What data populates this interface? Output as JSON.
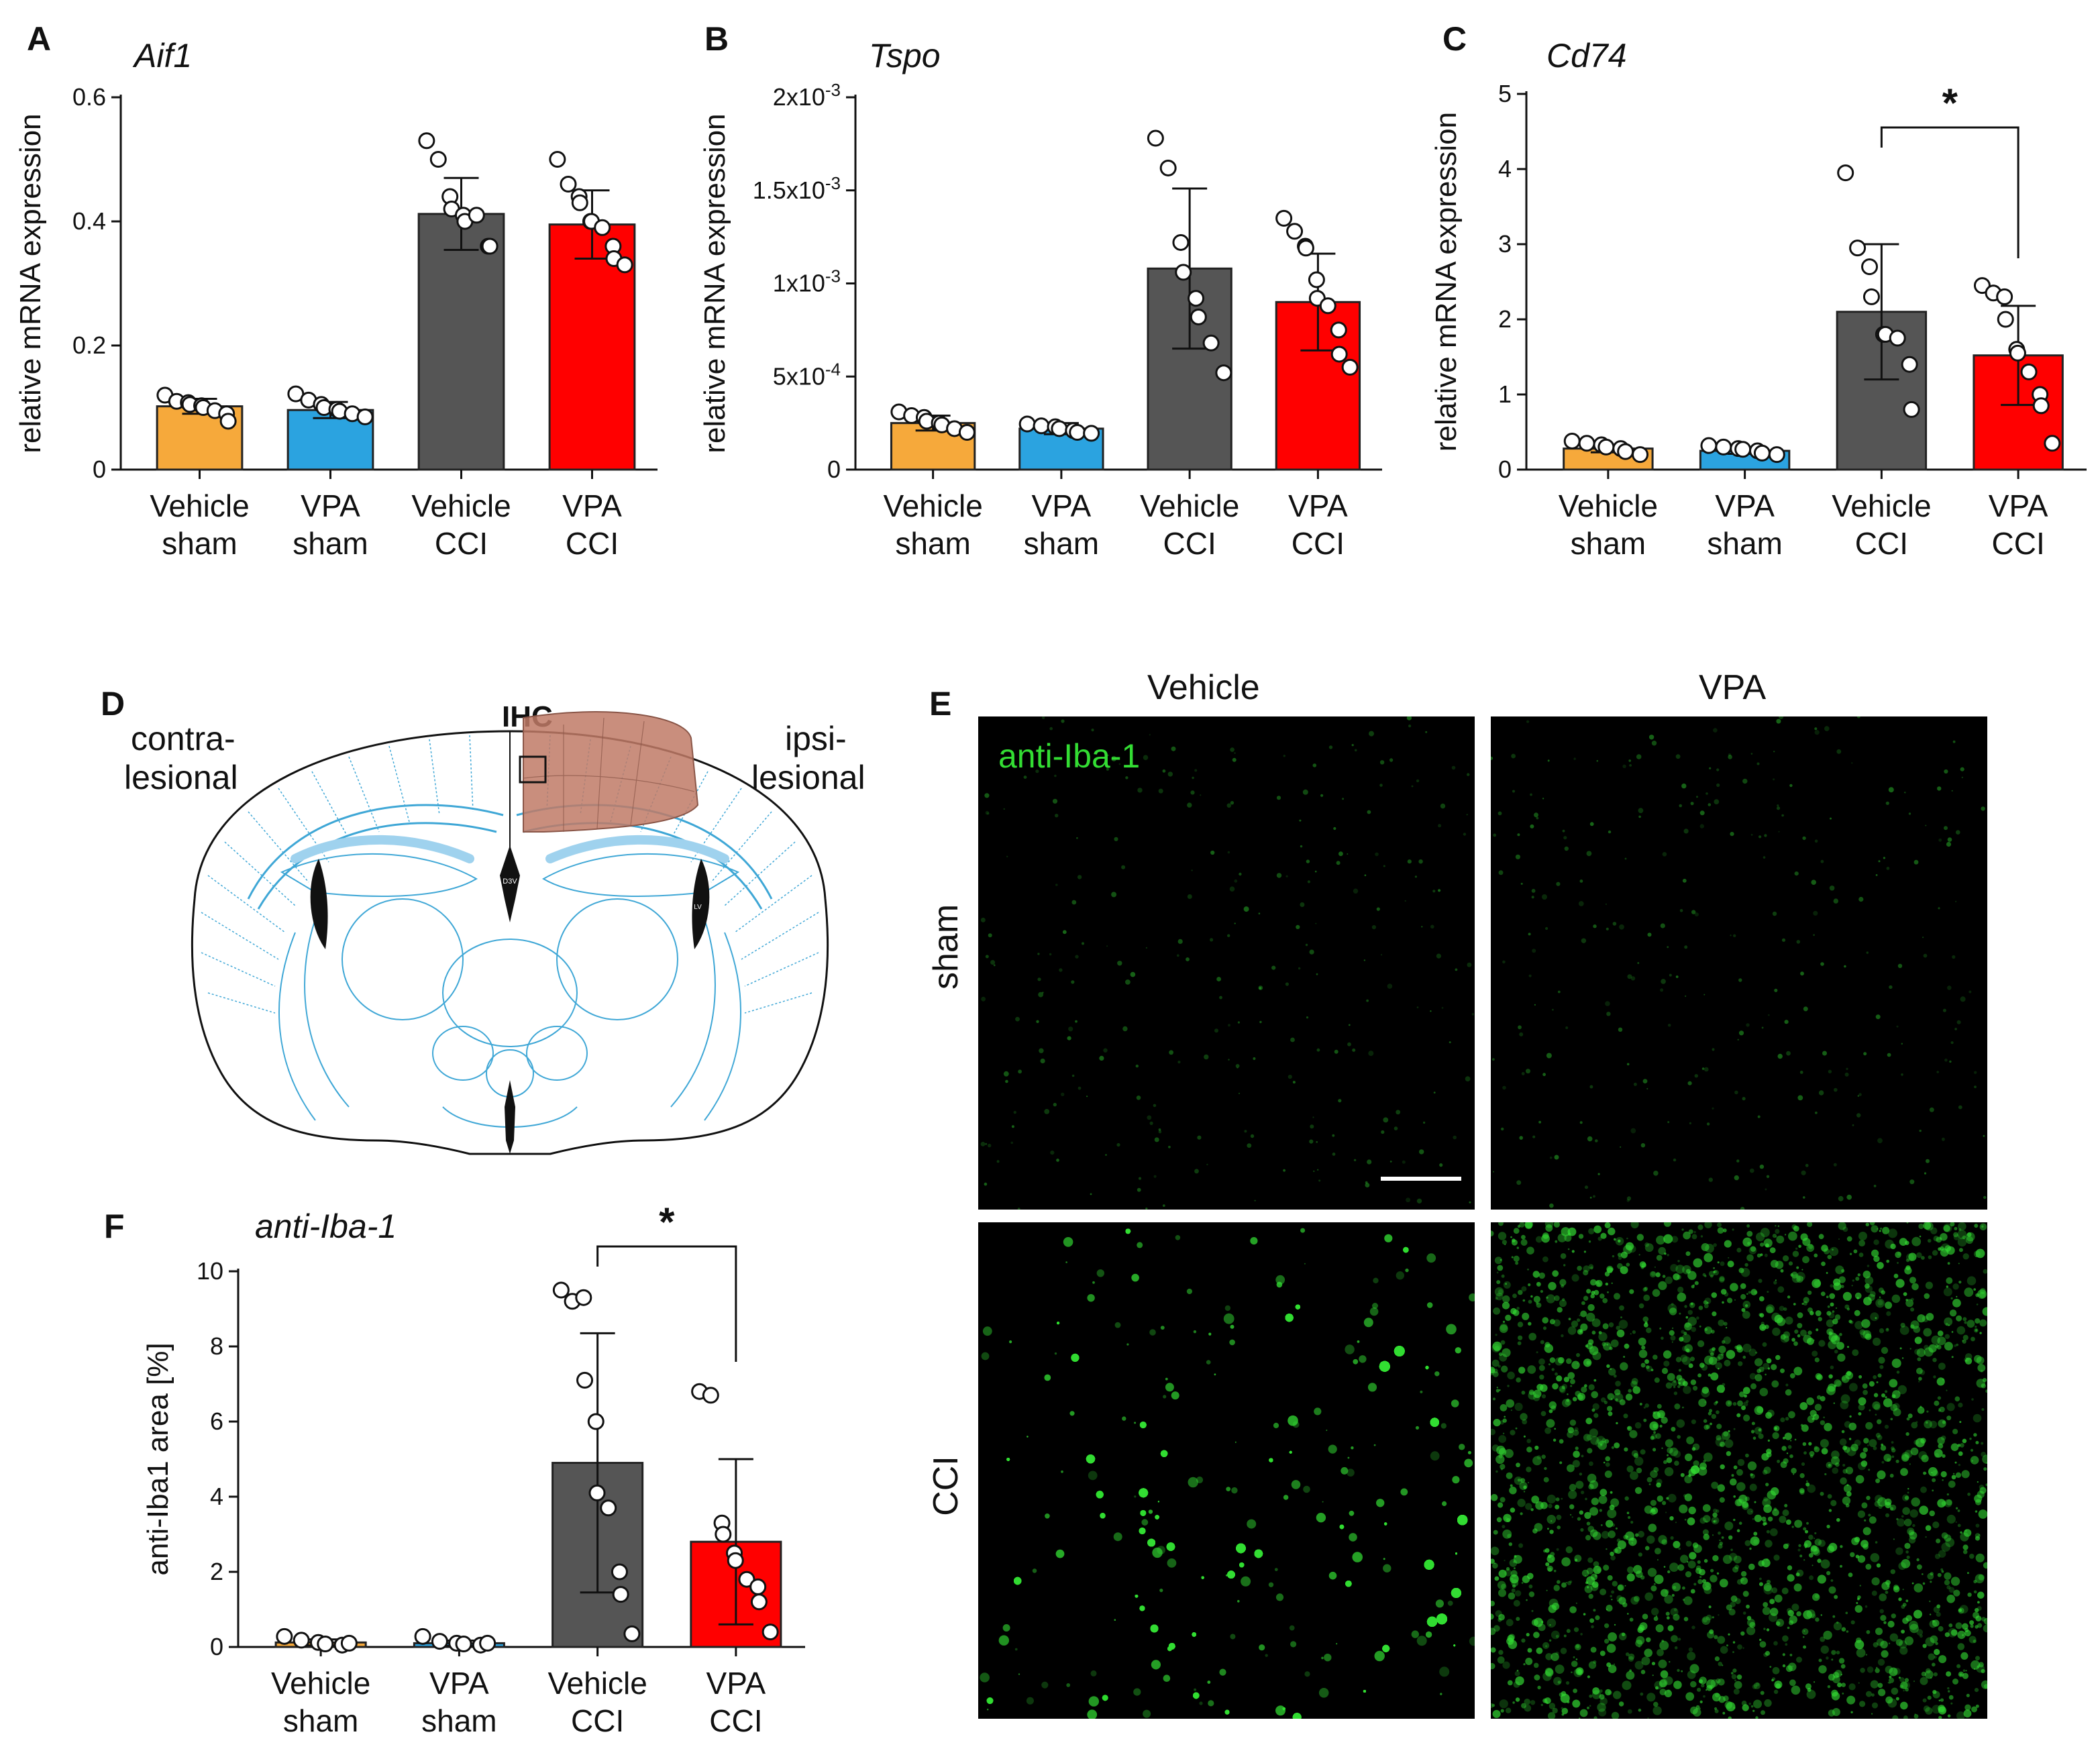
{
  "chart_data": [
    {
      "panel": "A",
      "type": "bar",
      "title": "Aif1",
      "ylabel": "relative mRNA expression",
      "ylim": [
        0,
        0.6
      ],
      "yticks": [
        "0",
        "0.2",
        "0.4",
        "0.6"
      ],
      "yticks_val": [
        0,
        0.2,
        0.4,
        0.6
      ],
      "categories": [
        "Vehicle sham",
        "VPA sham",
        "Vehicle CCI",
        "VPA CCI"
      ],
      "cat_l1": [
        "Vehicle",
        "VPA",
        "Vehicle",
        "VPA"
      ],
      "cat_l2": [
        "sham",
        "sham",
        "CCI",
        "CCI"
      ],
      "colors": [
        "#F6A93B",
        "#2BA3E0",
        "#555555",
        "#FF0000"
      ],
      "values": [
        0.102,
        0.096,
        0.412,
        0.395
      ],
      "sd": [
        0.012,
        0.013,
        0.058,
        0.055
      ],
      "points": [
        [
          0.12,
          0.11,
          0.108,
          0.105,
          0.103,
          0.1,
          0.095,
          0.09,
          0.078
        ],
        [
          0.122,
          0.112,
          0.105,
          0.1,
          0.097,
          0.094,
          0.09,
          0.085
        ],
        [
          0.53,
          0.5,
          0.44,
          0.42,
          0.41,
          0.4,
          0.41,
          0.36,
          0.36
        ],
        [
          0.5,
          0.46,
          0.44,
          0.43,
          0.4,
          0.4,
          0.39,
          0.36,
          0.34,
          0.33
        ]
      ],
      "significance": null
    },
    {
      "panel": "B",
      "type": "bar",
      "title": "Tspo",
      "ylabel": "relative mRNA expression",
      "ylim": [
        0,
        0.002
      ],
      "yticks": [
        "0",
        "5x10-4",
        "1x10-3",
        "1.5x10-3",
        "2x10-3"
      ],
      "yticks_val": [
        0,
        0.0005,
        0.001,
        0.0015,
        0.002
      ],
      "categories": [
        "Vehicle sham",
        "VPA sham",
        "Vehicle CCI",
        "VPA CCI"
      ],
      "cat_l1": [
        "Vehicle",
        "VPA",
        "Vehicle",
        "VPA"
      ],
      "cat_l2": [
        "sham",
        "sham",
        "CCI",
        "CCI"
      ],
      "colors": [
        "#F6A93B",
        "#2BA3E0",
        "#555555",
        "#FF0000"
      ],
      "values": [
        0.00025,
        0.00022,
        0.00108,
        0.0009
      ],
      "sd": [
        4e-05,
        3e-05,
        0.00043,
        0.00026
      ],
      "points": [
        [
          0.00031,
          0.00029,
          0.00028,
          0.00026,
          0.00025,
          0.00024,
          0.00022,
          0.0002
        ],
        [
          0.000245,
          0.000235,
          0.00023,
          0.00022,
          0.00021,
          0.0002,
          0.000195
        ],
        [
          0.00178,
          0.00162,
          0.00122,
          0.00106,
          0.00092,
          0.00082,
          0.00068,
          0.00052
        ],
        [
          0.00135,
          0.00128,
          0.0012,
          0.00119,
          0.00102,
          0.00092,
          0.00088,
          0.00075,
          0.00062,
          0.00055
        ]
      ],
      "significance": null
    },
    {
      "panel": "C",
      "type": "bar",
      "title": "Cd74",
      "ylabel": "relative mRNA expression",
      "ylim": [
        0,
        5
      ],
      "yticks": [
        "0",
        "1",
        "2",
        "3",
        "4",
        "5"
      ],
      "yticks_val": [
        0,
        1,
        2,
        3,
        4,
        5
      ],
      "categories": [
        "Vehicle sham",
        "VPA sham",
        "Vehicle CCI",
        "VPA CCI"
      ],
      "cat_l1": [
        "Vehicle",
        "VPA",
        "Vehicle",
        "VPA"
      ],
      "cat_l2": [
        "sham",
        "sham",
        "CCI",
        "CCI"
      ],
      "colors": [
        "#F6A93B",
        "#2BA3E0",
        "#555555",
        "#FF0000"
      ],
      "values": [
        0.28,
        0.25,
        2.1,
        1.52
      ],
      "sd": [
        0.05,
        0.04,
        0.9,
        0.66
      ],
      "points": [
        [
          0.38,
          0.35,
          0.33,
          0.3,
          0.28,
          0.24,
          0.2
        ],
        [
          0.32,
          0.3,
          0.28,
          0.27,
          0.25,
          0.22,
          0.2
        ],
        [
          3.95,
          2.95,
          2.7,
          2.3,
          1.8,
          1.8,
          1.75,
          1.4,
          0.8
        ],
        [
          2.45,
          2.35,
          2.3,
          2.0,
          1.6,
          1.55,
          1.3,
          1.0,
          0.85,
          0.35
        ]
      ],
      "significance": {
        "from": 2,
        "to": 3,
        "label": "*"
      }
    },
    {
      "panel": "F",
      "type": "bar",
      "title": "anti-Iba-1",
      "ylabel": "anti-Iba1 area [%]",
      "ylim": [
        0,
        10
      ],
      "yticks": [
        "0",
        "2",
        "4",
        "6",
        "8",
        "10"
      ],
      "yticks_val": [
        0,
        2,
        4,
        6,
        8,
        10
      ],
      "categories": [
        "Vehicle sham",
        "VPA sham",
        "Vehicle CCI",
        "VPA CCI"
      ],
      "cat_l1": [
        "Vehicle",
        "VPA",
        "Vehicle",
        "VPA"
      ],
      "cat_l2": [
        "sham",
        "sham",
        "CCI",
        "CCI"
      ],
      "colors": [
        "#F6A93B",
        "#2BA3E0",
        "#555555",
        "#FF0000"
      ],
      "values": [
        0.12,
        0.1,
        4.9,
        2.8
      ],
      "sd": [
        0.08,
        0.07,
        3.45,
        2.2
      ],
      "points": [
        [
          0.28,
          0.18,
          0.12,
          0.08,
          0.05,
          0.1
        ],
        [
          0.28,
          0.15,
          0.1,
          0.08,
          0.05,
          0.1
        ],
        [
          9.5,
          9.2,
          9.3,
          7.1,
          6.0,
          4.1,
          3.7,
          2.0,
          1.4,
          0.35
        ],
        [
          6.8,
          6.7,
          3.3,
          3.0,
          2.5,
          2.3,
          1.8,
          1.6,
          1.2,
          0.4
        ]
      ],
      "significance": {
        "from": 2,
        "to": 3,
        "label": "*"
      }
    }
  ],
  "panel_labels": {
    "A": "A",
    "B": "B",
    "C": "C",
    "D": "D",
    "E": "E",
    "F": "F"
  },
  "panel_d": {
    "contra_1": "contra-",
    "contra_2": "lesional",
    "ipsi_1": "ipsi-",
    "ipsi_2": "lesional",
    "ihc": "IHC",
    "d3v": "D3V",
    "lv": "LV"
  },
  "panel_e": {
    "col_vehicle": "Vehicle",
    "col_vpa": "VPA",
    "row_sham": "sham",
    "row_cci": "CCI",
    "stain_label": "anti-Iba-1"
  },
  "colors": {
    "vehicle_sham": "#F6A93B",
    "vpa_sham": "#2BA3E0",
    "vehicle_cci": "#555555",
    "vpa_cci": "#FF0000",
    "atlas_line": "#3FA7D6",
    "lesion": "#C07A66",
    "iba1_green": "#33DD33"
  }
}
